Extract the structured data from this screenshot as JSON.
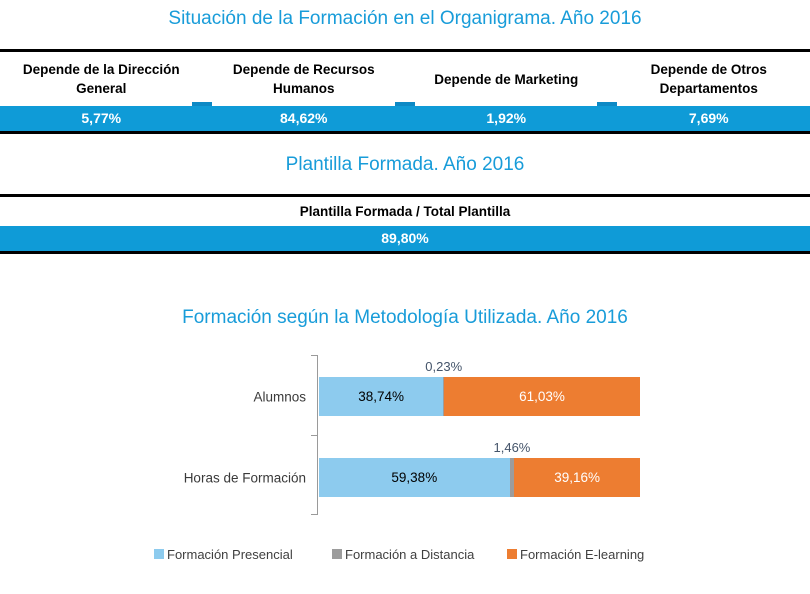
{
  "colors": {
    "title_blue": "#189CD9",
    "accent_blue": "#0F9BD7",
    "notch_blue": "#0D89C5",
    "divider_black": "#000000",
    "axis_gray": "#9A9A9A",
    "above_label_gray": "#44546A",
    "bar_presencial": "#8DCBEE",
    "bar_distancia": "#9C9C9C",
    "bar_elearning": "#ED7D31"
  },
  "section_organigrama": {
    "title": "Situación de la Formación en el Organigrama. Año 2016",
    "columns": [
      {
        "label": "Depende de la Dirección General",
        "value": "5,77%"
      },
      {
        "label": "Depende de Recursos Humanos",
        "value": "84,62%"
      },
      {
        "label": "Depende de Marketing",
        "value": "1,92%"
      },
      {
        "label": "Depende de Otros Departamentos",
        "value": "7,69%"
      }
    ]
  },
  "section_plantilla": {
    "title": "Plantilla Formada. Año 2016",
    "header": "Plantilla Formada / Total Plantilla",
    "value": "89,80%"
  },
  "section_metodologia": {
    "title": "Formación según la Metodología Utilizada. Año 2016"
  },
  "chart_data": [
    {
      "type": "table",
      "title": "Situación de la Formación en el Organigrama. Año 2016",
      "categories": [
        "Depende de la Dirección General",
        "Depende de Recursos Humanos",
        "Depende de Marketing",
        "Depende de Otros Departamentos"
      ],
      "values": [
        5.77,
        84.62,
        1.92,
        7.69
      ],
      "unit": "%"
    },
    {
      "type": "table",
      "title": "Plantilla Formada. Año 2016",
      "categories": [
        "Plantilla Formada / Total Plantilla"
      ],
      "values": [
        89.8
      ],
      "unit": "%"
    },
    {
      "type": "bar",
      "orientation": "horizontal",
      "stacked": true,
      "title": "Formación según la Metodología Utilizada. Año 2016",
      "categories": [
        "Alumnos",
        "Horas de Formación"
      ],
      "series": [
        {
          "name": "Formación Presencial",
          "color": "#8DCBEE",
          "values": [
            38.74,
            59.38
          ]
        },
        {
          "name": "Formación a Distancia",
          "color": "#9C9C9C",
          "values": [
            0.23,
            1.46
          ]
        },
        {
          "name": "Formación E-learning",
          "color": "#ED7D31",
          "values": [
            61.03,
            39.16
          ]
        }
      ],
      "xlim": [
        0,
        100
      ],
      "grid": false,
      "legend_position": "bottom",
      "data_label_format": "0,00%"
    }
  ]
}
